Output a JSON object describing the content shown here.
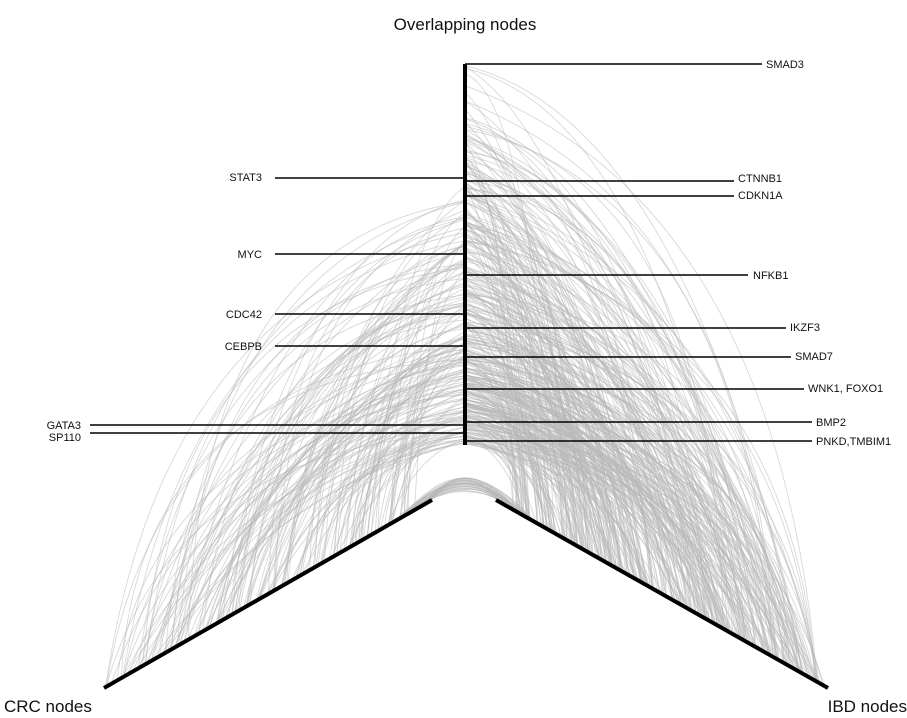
{
  "axes": {
    "top": "Overlapping nodes",
    "left": "CRC nodes",
    "right": "IBD nodes"
  },
  "left_labels": [
    "STAT3",
    "MYC",
    "CDC42",
    "CEBPB",
    "GATA3",
    "SP110"
  ],
  "right_labels": [
    "SMAD3",
    "CTNNB1",
    "CDKN1A",
    "NFKB1",
    "IKZF3",
    "SMAD7",
    "WNK1, FOXO1",
    "BMP2",
    "PNKD,TMBIM1"
  ],
  "colors": {
    "axis": "#000000",
    "edge": "#b8b8b8",
    "label_line": "#000000"
  }
}
